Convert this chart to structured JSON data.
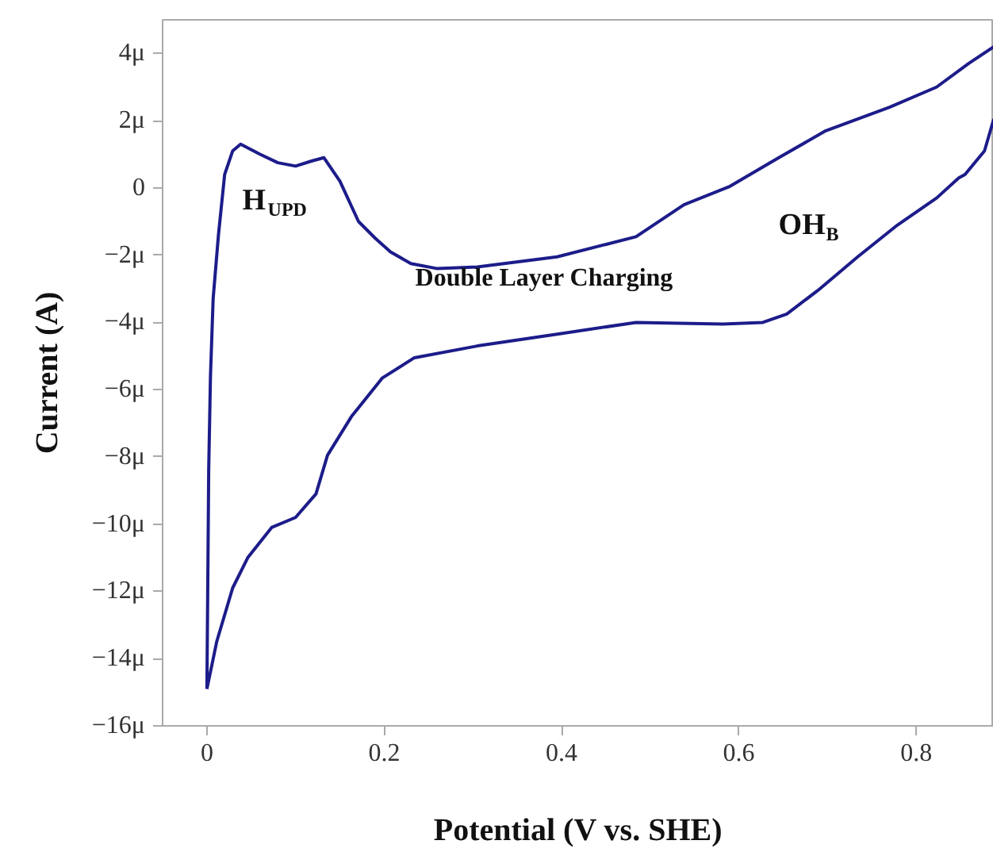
{
  "chart_data": {
    "type": "line",
    "xlabel": "Potential (V vs. SHE)",
    "ylabel": "Current (A)",
    "xlim": [
      -0.05,
      0.8875
    ],
    "ylim": [
      -16,
      5
    ],
    "xticks": [
      0,
      0.2,
      0.4,
      0.6,
      0.8
    ],
    "yticks": [
      {
        "value": -16,
        "label": "−16μ"
      },
      {
        "value": -14,
        "label": "−14μ"
      },
      {
        "value": -12,
        "label": "−12μ"
      },
      {
        "value": -10,
        "label": "−10μ"
      },
      {
        "value": -8,
        "label": "−8μ"
      },
      {
        "value": -6,
        "label": "−6μ"
      },
      {
        "value": -4,
        "label": "−4μ"
      },
      {
        "value": -2,
        "label": "−2μ"
      },
      {
        "value": 0,
        "label": "0"
      },
      {
        "value": 2,
        "label": "2μ"
      },
      {
        "value": 4,
        "label": "4μ"
      }
    ],
    "grid": false,
    "marker": "none",
    "line_style": "solid",
    "series": [
      {
        "color": "#1c1c8a",
        "x": [
          0,
          0.002,
          0.004,
          0.007,
          0.013,
          0.02,
          0.029,
          0.038,
          0.06,
          0.08,
          0.1,
          0.118,
          0.132,
          0.15,
          0.171,
          0.19,
          0.207,
          0.23,
          0.26,
          0.305,
          0.395,
          0.484,
          0.538,
          0.59,
          0.645,
          0.698,
          0.77,
          0.823,
          0.859,
          0.8875
        ],
        "values": [
          -14.9,
          -8.4,
          -5.6,
          -3.3,
          -1.4,
          0.4,
          1.1,
          1.3,
          1.0,
          0.75,
          0.65,
          0.8,
          0.9,
          0.2,
          -1.0,
          -1.5,
          -1.9,
          -2.25,
          -2.4,
          -2.35,
          -2.05,
          -1.45,
          -0.5,
          0.05,
          0.9,
          1.7,
          2.4,
          3.0,
          3.7,
          4.2
        ]
      },
      {
        "color": "#1c1c8a",
        "x": [
          0,
          0.011,
          0.029,
          0.046,
          0.073,
          0.1,
          0.123,
          0.136,
          0.163,
          0.198,
          0.234,
          0.305,
          0.395,
          0.484,
          0.582,
          0.627,
          0.654,
          0.689,
          0.734,
          0.779,
          0.823,
          0.848,
          0.855,
          0.877,
          0.8875
        ],
        "values": [
          -14.9,
          -13.5,
          -11.9,
          -11.0,
          -10.1,
          -9.8,
          -9.1,
          -7.95,
          -6.8,
          -5.65,
          -5.05,
          -4.7,
          -4.35,
          -4.0,
          -4.05,
          -4.0,
          -3.75,
          -3.05,
          -2.05,
          -1.1,
          -0.3,
          0.3,
          0.4,
          1.1,
          2.05
        ]
      }
    ],
    "annotations": [
      "H$_{UPD}$",
      "Double Layer Charging",
      "OH$_{B}$"
    ]
  }
}
